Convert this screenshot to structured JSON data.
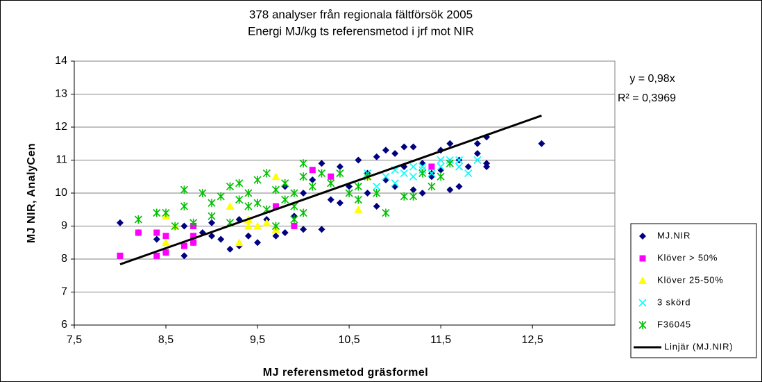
{
  "chart_data": {
    "type": "scatter",
    "title": "378 analyser från regionala fältförsök 2005",
    "subtitle": "Energi MJ/kg ts referensmetod i jrf mot NIR",
    "x_label": "MJ referensmetod gräsformel",
    "y_label": "MJ NIR, AnalyCen",
    "xlim": [
      7.5,
      13.4
    ],
    "ylim": [
      6,
      14
    ],
    "xticks": [
      {
        "value": 7.5,
        "label": "7,5"
      },
      {
        "value": 8.5,
        "label": "8,5"
      },
      {
        "value": 9.5,
        "label": "9,5"
      },
      {
        "value": 10.5,
        "label": "10,5"
      },
      {
        "value": 11.5,
        "label": "11,5"
      },
      {
        "value": 12.5,
        "label": "12,5"
      }
    ],
    "yticks": [
      6,
      7,
      8,
      9,
      10,
      11,
      12,
      13,
      14
    ],
    "grid": true,
    "legend": "right",
    "annotations": [
      "y = 0,98x",
      "R² = 0,3969"
    ],
    "series": [
      {
        "name": "MJ.NIR",
        "color": "#000080",
        "marker": "diamond",
        "x": [
          8.0,
          8.2,
          8.4,
          8.5,
          8.7,
          8.7,
          8.9,
          9.0,
          9.1,
          9.2,
          9.3,
          9.3,
          9.4,
          9.5,
          9.6,
          9.7,
          9.8,
          9.8,
          9.9,
          10.0,
          10.2,
          10.1,
          10.2,
          10.3,
          10.4,
          10.4,
          10.5,
          10.6,
          10.7,
          10.8,
          10.8,
          10.9,
          10.9,
          11.0,
          11.0,
          11.1,
          11.1,
          11.2,
          11.2,
          11.3,
          11.3,
          11.4,
          11.5,
          11.5,
          11.6,
          11.6,
          11.7,
          11.7,
          11.8,
          11.9,
          11.9,
          12.0,
          12.0,
          12.0,
          12.6,
          10.0,
          9.0,
          10.7,
          11.4,
          8.8
        ],
        "values": [
          9.1,
          8.8,
          8.6,
          8.2,
          8.1,
          9.0,
          8.8,
          8.7,
          8.6,
          8.3,
          8.4,
          9.2,
          8.7,
          8.5,
          9.2,
          8.7,
          8.8,
          10.2,
          9.3,
          8.9,
          8.9,
          10.4,
          10.9,
          9.8,
          9.7,
          10.8,
          10.2,
          11.0,
          10.6,
          9.6,
          11.1,
          10.4,
          11.3,
          10.2,
          11.2,
          10.8,
          11.4,
          10.1,
          11.4,
          10.0,
          10.9,
          10.5,
          10.7,
          11.3,
          10.1,
          11.5,
          10.2,
          11.0,
          10.8,
          11.5,
          11.2,
          10.8,
          11.7,
          10.9,
          11.5,
          10.0,
          9.1,
          10.0,
          10.6,
          8.5
        ]
      },
      {
        "name": "Klöver > 50%",
        "color": "#ff00ff",
        "marker": "square",
        "x": [
          8.0,
          8.2,
          8.4,
          8.4,
          8.5,
          8.5,
          8.7,
          8.8,
          8.8,
          8.8,
          9.7,
          9.9,
          10.1,
          10.3,
          11.4
        ],
        "values": [
          8.1,
          8.8,
          8.1,
          8.8,
          8.2,
          8.7,
          8.4,
          8.5,
          9.0,
          8.7,
          9.6,
          9.0,
          10.7,
          10.5,
          10.8
        ]
      },
      {
        "name": "Klöver 25-50%",
        "color": "#ffff00",
        "marker": "triangle",
        "x": [
          8.5,
          8.5,
          8.6,
          9.2,
          9.3,
          9.4,
          9.4,
          9.5,
          9.6,
          9.7,
          9.7,
          10.6,
          10.7
        ],
        "values": [
          8.5,
          9.3,
          9.0,
          9.6,
          8.5,
          9.0,
          9.2,
          9.0,
          9.1,
          8.9,
          10.5,
          9.5,
          10.5
        ]
      },
      {
        "name": "3 skörd",
        "color": "#00ffff",
        "marker": "x",
        "x": [
          10.7,
          10.8,
          10.9,
          11.0,
          11.0,
          11.1,
          11.2,
          11.3,
          11.3,
          11.4,
          11.5,
          11.6,
          11.7,
          11.8,
          11.9,
          11.7,
          11.2,
          11.5
        ],
        "values": [
          10.6,
          10.2,
          10.5,
          10.7,
          10.3,
          10.6,
          10.5,
          10.7,
          10.8,
          10.6,
          10.8,
          11.0,
          10.8,
          10.6,
          11.0,
          11.0,
          10.8,
          11.0
        ]
      },
      {
        "name": "F36045",
        "color": "#00c000",
        "marker": "asterisk",
        "x": [
          8.2,
          8.4,
          8.5,
          8.6,
          8.7,
          8.7,
          8.8,
          8.9,
          9.0,
          9.0,
          9.1,
          9.2,
          9.2,
          9.3,
          9.3,
          9.4,
          9.4,
          9.5,
          9.5,
          9.6,
          9.6,
          9.7,
          9.8,
          9.8,
          9.9,
          9.9,
          10.0,
          10.0,
          10.1,
          10.2,
          10.3,
          10.4,
          10.5,
          10.6,
          10.6,
          10.7,
          10.8,
          10.9,
          11.1,
          11.2,
          11.3,
          11.4,
          11.5,
          11.6,
          9.7,
          9.9,
          10.0
        ],
        "values": [
          9.2,
          9.4,
          9.4,
          9.0,
          9.6,
          10.1,
          9.1,
          10.0,
          9.3,
          9.7,
          9.9,
          10.2,
          9.1,
          10.3,
          9.8,
          9.6,
          10.0,
          10.4,
          9.7,
          10.6,
          9.5,
          10.1,
          9.8,
          10.3,
          10.0,
          9.2,
          10.5,
          9.4,
          10.2,
          10.6,
          10.3,
          10.6,
          10.0,
          10.2,
          9.8,
          10.5,
          10.0,
          9.4,
          9.9,
          9.9,
          10.6,
          10.2,
          10.5,
          10.9,
          9.0,
          9.6,
          10.9
        ]
      }
    ],
    "trendline": {
      "name": "Linjär (MJ.NIR)",
      "color": "#000000",
      "slope": 0.98,
      "x_range": [
        8.0,
        12.6
      ]
    }
  }
}
